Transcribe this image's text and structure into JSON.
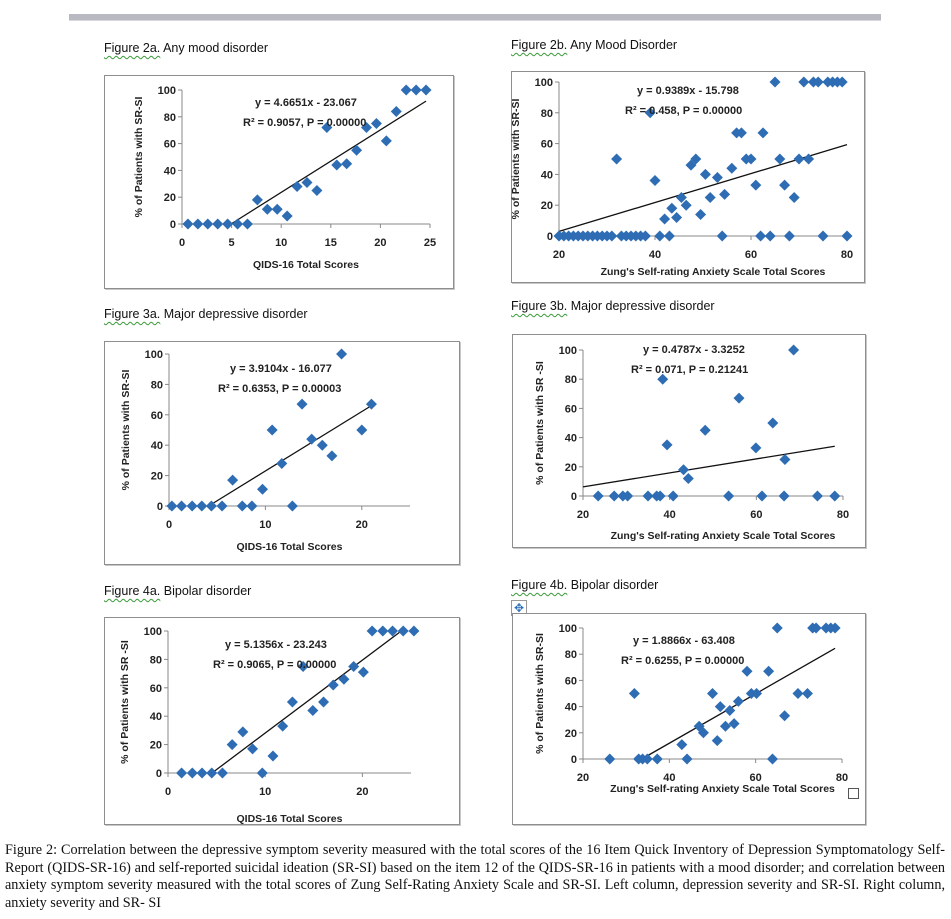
{
  "caption": {
    "label": "Figure 2:",
    "text": "Correlation between the depressive symptom severity measured with the total scores of the 16 Item Quick Inventory of Depression Symptomatology Self-Report (QIDS-SR-16) and self-reported suicidal ideation (SR-SI) based on the item 12 of the QIDS-SR-16 in patients with a mood disorder; and correlation between anxiety symptom severity measured with the total scores of Zung Self-Rating Anxiety Scale and SR-SI. Left column, depression severity and SR-SI. Right column, anxiety severity and SR- SI"
  },
  "icons": {
    "move": "move-arrows-icon",
    "resize": "resize-handle-icon"
  },
  "colors": {
    "marker": "#2e6db4",
    "trendline": "#111111",
    "axis": "#888888",
    "topbar": "#b9b9c1"
  },
  "chart_data": [
    {
      "id": "fig2a",
      "type": "scatter",
      "title_label": "Figure 2a.",
      "title": "Any mood disorder",
      "xlabel": "QIDS-16 Total Scores",
      "ylabel": "% of Patients   with SR-SI",
      "xlim": [
        0,
        25
      ],
      "ylim": [
        0,
        100
      ],
      "xticks": [
        0,
        5,
        10,
        15,
        20,
        25
      ],
      "yticks": [
        0,
        20,
        40,
        60,
        80,
        100
      ],
      "equation": "y = 4.6651x - 23.067",
      "r2": "R² = 0.9057, P = 0.00000",
      "trend": {
        "slope": 4.6651,
        "intercept": -23.067
      },
      "points": [
        [
          0.6,
          0
        ],
        [
          1.6,
          0
        ],
        [
          2.6,
          0
        ],
        [
          3.6,
          0
        ],
        [
          4.6,
          0
        ],
        [
          5.6,
          0
        ],
        [
          6.6,
          0
        ],
        [
          7.6,
          18
        ],
        [
          8.6,
          11
        ],
        [
          9.6,
          11
        ],
        [
          10.6,
          6
        ],
        [
          11.6,
          28
        ],
        [
          12.6,
          31
        ],
        [
          13.6,
          25
        ],
        [
          14.6,
          72
        ],
        [
          15.6,
          44
        ],
        [
          16.6,
          45
        ],
        [
          17.6,
          55
        ],
        [
          18.6,
          72
        ],
        [
          19.6,
          75
        ],
        [
          20.6,
          62
        ],
        [
          21.6,
          84
        ],
        [
          22.6,
          100
        ],
        [
          23.6,
          100
        ],
        [
          24.6,
          100
        ]
      ]
    },
    {
      "id": "fig2b",
      "type": "scatter",
      "title_label": "Figure 2b.",
      "title": "Any Mood Disorder",
      "xlabel": "Zung's Self-rating Anxiety Scale Total Scores",
      "ylabel": "% of Patients   with SR-SI",
      "xlim": [
        20,
        80
      ],
      "ylim": [
        0,
        100
      ],
      "xticks": [
        20,
        40,
        60,
        80
      ],
      "yticks": [
        0,
        20,
        40,
        60,
        80,
        100
      ],
      "equation": "y = 0.9389x - 15.798",
      "r2": "R² = 0.458, P = 0.00000",
      "trend": {
        "slope": 0.9389,
        "intercept": -15.798
      },
      "points": [
        [
          20,
          0
        ],
        [
          21,
          0
        ],
        [
          22,
          0
        ],
        [
          23,
          0
        ],
        [
          24,
          0
        ],
        [
          25,
          0
        ],
        [
          26,
          0
        ],
        [
          27,
          0
        ],
        [
          28,
          0
        ],
        [
          29,
          0
        ],
        [
          30,
          0
        ],
        [
          31,
          0
        ],
        [
          33,
          0
        ],
        [
          34,
          0
        ],
        [
          35,
          0
        ],
        [
          36,
          0
        ],
        [
          37,
          0
        ],
        [
          38,
          0
        ],
        [
          41,
          0
        ],
        [
          43,
          0
        ],
        [
          54,
          0
        ],
        [
          62,
          0
        ],
        [
          64,
          0
        ],
        [
          68,
          0
        ],
        [
          75,
          0
        ],
        [
          80,
          0
        ],
        [
          32,
          50
        ],
        [
          39,
          80
        ],
        [
          40,
          36
        ],
        [
          42,
          11
        ],
        [
          43.5,
          18
        ],
        [
          44.5,
          12
        ],
        [
          45.5,
          25
        ],
        [
          46.5,
          20
        ],
        [
          47.5,
          46
        ],
        [
          48.5,
          50
        ],
        [
          49.5,
          14
        ],
        [
          50.5,
          40
        ],
        [
          51.5,
          25
        ],
        [
          53,
          38
        ],
        [
          54.5,
          27
        ],
        [
          56,
          44
        ],
        [
          57,
          67
        ],
        [
          58,
          67
        ],
        [
          59,
          50
        ],
        [
          60,
          50
        ],
        [
          61,
          33
        ],
        [
          62.5,
          67
        ],
        [
          65,
          100
        ],
        [
          66,
          50
        ],
        [
          67,
          33
        ],
        [
          69,
          25
        ],
        [
          70,
          50
        ],
        [
          72,
          50
        ],
        [
          71,
          100
        ],
        [
          73,
          100
        ],
        [
          74,
          100
        ],
        [
          76,
          100
        ],
        [
          77,
          100
        ],
        [
          78,
          100
        ],
        [
          79,
          100
        ]
      ]
    },
    {
      "id": "fig3a",
      "type": "scatter",
      "title_label": "Figure 3a.",
      "title": "Major depressive disorder",
      "xlabel": "QIDS-16 Total Scores",
      "ylabel": "% of Patients   with SR-SI",
      "xlim": [
        0,
        25
      ],
      "ylim": [
        0,
        100
      ],
      "xticks": [
        0,
        10,
        20
      ],
      "yticks": [
        0,
        20,
        40,
        60,
        80,
        100
      ],
      "equation": "y = 3.9104x - 16.077",
      "r2": "R² = 0.6353, P = 0.00003",
      "trend": {
        "slope": 3.9104,
        "intercept": -16.077
      },
      "points": [
        [
          0.3,
          0
        ],
        [
          1.3,
          0
        ],
        [
          2.4,
          0
        ],
        [
          3.4,
          0
        ],
        [
          4.4,
          0
        ],
        [
          5.5,
          0
        ],
        [
          6.6,
          17
        ],
        [
          7.6,
          0
        ],
        [
          8.6,
          0
        ],
        [
          9.7,
          11
        ],
        [
          10.7,
          50
        ],
        [
          11.7,
          28
        ],
        [
          12.8,
          0
        ],
        [
          13.8,
          67
        ],
        [
          14.8,
          44
        ],
        [
          15.9,
          40
        ],
        [
          16.9,
          33
        ],
        [
          17.9,
          100
        ],
        [
          20,
          50
        ],
        [
          21,
          67
        ]
      ]
    },
    {
      "id": "fig3b",
      "type": "scatter",
      "title_label": "Figure 3b.",
      "title": "Major depressive disorder",
      "xlabel": "Zung's Self-rating Anxiety Scale Total Scores",
      "ylabel": "% of Patients   with SR -SI",
      "xlim": [
        20,
        80
      ],
      "ylim": [
        0,
        100
      ],
      "xticks": [
        20,
        40,
        60,
        80
      ],
      "yticks": [
        0,
        20,
        40,
        60,
        80,
        100
      ],
      "equation": "y = 0.4787x - 3.3252",
      "r2": "R² = 0.071, P = 0.21241",
      "trend": {
        "slope": 0.4787,
        "intercept": -3.3252
      },
      "points": [
        [
          23.5,
          0
        ],
        [
          27.2,
          0
        ],
        [
          29.2,
          0
        ],
        [
          30.3,
          0
        ],
        [
          35,
          0
        ],
        [
          37,
          0
        ],
        [
          37.8,
          0
        ],
        [
          40.8,
          0
        ],
        [
          53.6,
          0
        ],
        [
          61.3,
          0
        ],
        [
          66.4,
          0
        ],
        [
          74.1,
          0
        ],
        [
          78.1,
          0
        ],
        [
          38.4,
          80
        ],
        [
          39.4,
          35
        ],
        [
          43.2,
          18
        ],
        [
          44.3,
          12
        ],
        [
          48.2,
          45
        ],
        [
          56,
          67
        ],
        [
          59.9,
          33
        ],
        [
          63.8,
          50
        ],
        [
          66.6,
          25
        ],
        [
          68.6,
          100
        ]
      ]
    },
    {
      "id": "fig4a",
      "type": "scatter",
      "title_label": "Figure 4a.",
      "title": "Bipolar  disorder",
      "xlabel": "QIDS-16 Total Scores",
      "ylabel": "% of Patients   with SR -SI",
      "xlim": [
        0,
        25
      ],
      "ylim": [
        0,
        100
      ],
      "xticks": [
        0,
        10,
        20
      ],
      "yticks": [
        0,
        20,
        40,
        60,
        80,
        100
      ],
      "equation": "y = 5.1356x - 23.243",
      "r2": "R² = 0.9065, P = 0.00000",
      "trend": {
        "slope": 5.1356,
        "intercept": -23.243
      },
      "points": [
        [
          1.4,
          0
        ],
        [
          2.5,
          0
        ],
        [
          3.5,
          0
        ],
        [
          4.5,
          0
        ],
        [
          5.6,
          0
        ],
        [
          6.6,
          20
        ],
        [
          7.7,
          29
        ],
        [
          8.7,
          17
        ],
        [
          9.7,
          0
        ],
        [
          10.8,
          12
        ],
        [
          11.8,
          33
        ],
        [
          12.8,
          50
        ],
        [
          13.9,
          75
        ],
        [
          14.9,
          44
        ],
        [
          16,
          50
        ],
        [
          17,
          62
        ],
        [
          18.1,
          66
        ],
        [
          19.1,
          75
        ],
        [
          20.1,
          71
        ],
        [
          21,
          100
        ],
        [
          22.1,
          100
        ],
        [
          23.1,
          100
        ],
        [
          24.2,
          100
        ],
        [
          25.3,
          100
        ]
      ]
    },
    {
      "id": "fig4b",
      "type": "scatter",
      "title_label": "Figure 4b.",
      "title": "Bipolar  disorder",
      "xlabel": "Zung's Self-rating Anxiety Scale Total Scores",
      "ylabel": "% of Patients  with SR-SI",
      "xlim": [
        20,
        80
      ],
      "ylim": [
        0,
        100
      ],
      "xticks": [
        20,
        40,
        60,
        80
      ],
      "yticks": [
        0,
        20,
        40,
        60,
        80,
        100
      ],
      "equation": "y = 1.8866x - 63.408",
      "r2": "R² = 0.6255, P = 0.00000",
      "trend": {
        "slope": 1.8866,
        "intercept": -63.408
      },
      "points": [
        [
          26.2,
          0
        ],
        [
          32.9,
          0
        ],
        [
          33.8,
          0
        ],
        [
          34.9,
          0
        ],
        [
          37.2,
          0
        ],
        [
          44.1,
          0
        ],
        [
          63.9,
          0
        ],
        [
          31.9,
          50
        ],
        [
          42.9,
          11
        ],
        [
          46.9,
          25
        ],
        [
          47.9,
          20
        ],
        [
          50,
          50
        ],
        [
          51.1,
          14
        ],
        [
          51.8,
          40
        ],
        [
          53,
          25
        ],
        [
          54,
          37
        ],
        [
          55,
          27
        ],
        [
          56,
          44
        ],
        [
          58,
          67
        ],
        [
          59,
          50
        ],
        [
          60.2,
          50
        ],
        [
          63,
          67
        ],
        [
          65,
          100
        ],
        [
          66.7,
          33
        ],
        [
          69.8,
          50
        ],
        [
          72,
          50
        ],
        [
          73.2,
          100
        ],
        [
          74,
          100
        ],
        [
          76.3,
          100
        ],
        [
          77.4,
          100
        ],
        [
          78.4,
          100
        ]
      ]
    }
  ]
}
